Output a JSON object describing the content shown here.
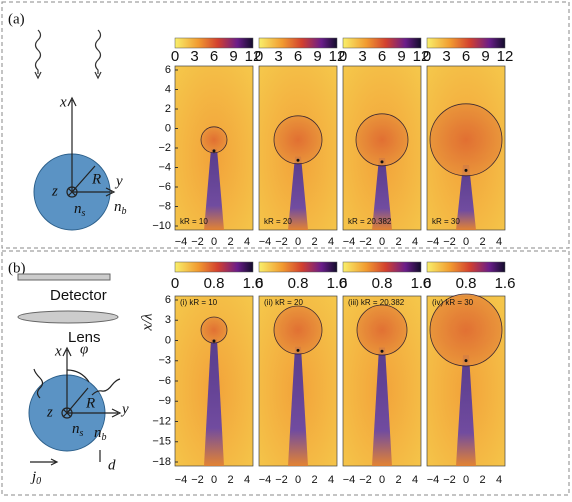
{
  "panel_a": {
    "label": "(a)",
    "colorbar_ticks": [
      "0",
      "3",
      "6",
      "9",
      "12"
    ],
    "y_ticks": [
      "6",
      "4",
      "2",
      "0",
      "−2",
      "−4",
      "−6",
      "−8",
      "−10"
    ],
    "x_ticks": [
      "−4",
      "−2",
      "0",
      "2",
      "4"
    ],
    "subplots": [
      "kR = 10",
      "kR = 20",
      "kR = 20.382",
      "kR = 30"
    ],
    "diagram": {
      "x": "x",
      "y": "y",
      "R": "R",
      "z": "z",
      "n_s": {
        "base": "n",
        "sub": "s"
      },
      "n_b": {
        "base": "n",
        "sub": "b"
      }
    }
  },
  "panel_b": {
    "label": "(b)",
    "colorbar_ticks": [
      "0",
      "0.8",
      "1.6"
    ],
    "y_axis_label": "x/λ",
    "y_ticks": [
      "6",
      "3",
      "0",
      "−3",
      "−6",
      "−9",
      "−12",
      "−15",
      "−18"
    ],
    "x_ticks": [
      "−4",
      "−2",
      "0",
      "2",
      "4"
    ],
    "subplots": [
      "(i) kR = 10",
      "(ii) kR = 20",
      "(iii) kR = 20.382",
      "(iv) kR = 30"
    ],
    "diagram": {
      "detector": "Detector",
      "lens": "Lens",
      "x": "x",
      "phi": "φ",
      "y": "y",
      "R": "R",
      "z": "z",
      "n_s": {
        "base": "n",
        "sub": "s"
      },
      "n_b": {
        "base": "n",
        "sub": "b"
      },
      "j_0": {
        "base": "j",
        "sub": "0"
      },
      "d": "d"
    }
  }
}
